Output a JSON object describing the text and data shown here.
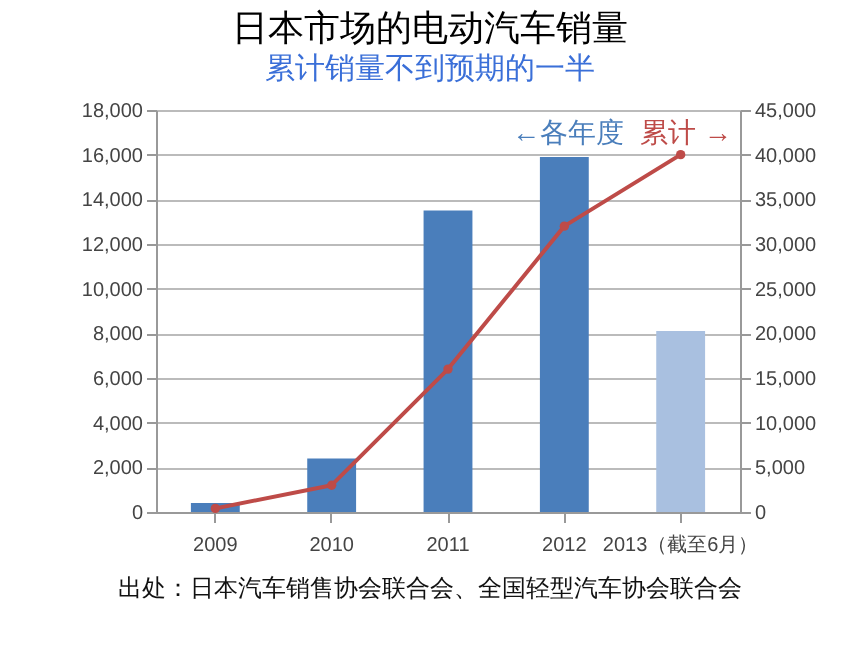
{
  "chart_data": {
    "type": "bar",
    "title": "日本市场的电动汽车销量",
    "subtitle": "累计销量不到预期的一半",
    "categories": [
      "2009",
      "2010",
      "2011",
      "2012",
      "2013（截至6月）"
    ],
    "series": [
      {
        "name": "←各年度",
        "colors": [
          "#4a7ebb",
          "#4a7ebb",
          "#4a7ebb",
          "#4a7ebb",
          "#a9c0e0"
        ],
        "values": [
          400,
          2400,
          13500,
          15900,
          8100
        ]
      },
      {
        "name": "累计 →",
        "type": "line",
        "axis": "y2",
        "color": "#be4b48",
        "values": [
          400,
          3000,
          16000,
          32000,
          40000
        ]
      }
    ],
    "ylim": [
      0,
      18000
    ],
    "yticks": [
      0,
      {
        "value": 2000,
        "label": "2,000"
      },
      {
        "value": 4000,
        "label": "4,000"
      },
      {
        "value": 6000,
        "label": "6,000"
      },
      {
        "value": 8000,
        "label": "8,000"
      },
      {
        "value": 10000,
        "label": "10,000"
      },
      {
        "value": 12000,
        "label": "12,000"
      },
      {
        "value": 14000,
        "label": "14,000"
      },
      {
        "value": 16000,
        "label": "16,000"
      },
      {
        "value": 18000,
        "label": "18,000"
      }
    ],
    "y2lim": [
      0,
      45000
    ],
    "y2ticks": [
      0,
      {
        "value": 5000,
        "label": "5,000"
      },
      {
        "value": 10000,
        "label": "10,000"
      },
      {
        "value": 15000,
        "label": "15,000"
      },
      {
        "value": 20000,
        "label": "20,000"
      },
      {
        "value": 25000,
        "label": "25,000"
      },
      {
        "value": 30000,
        "label": "30,000"
      },
      {
        "value": 35000,
        "label": "35,000"
      },
      {
        "value": 40000,
        "label": "40,000"
      },
      {
        "value": 45000,
        "label": "45,000"
      }
    ],
    "grid": "y",
    "marker": "circle",
    "legend": "top right",
    "annotations": [
      "出处：日本汽车销售协会联合会、全国轻型汽车协会联合会"
    ]
  }
}
